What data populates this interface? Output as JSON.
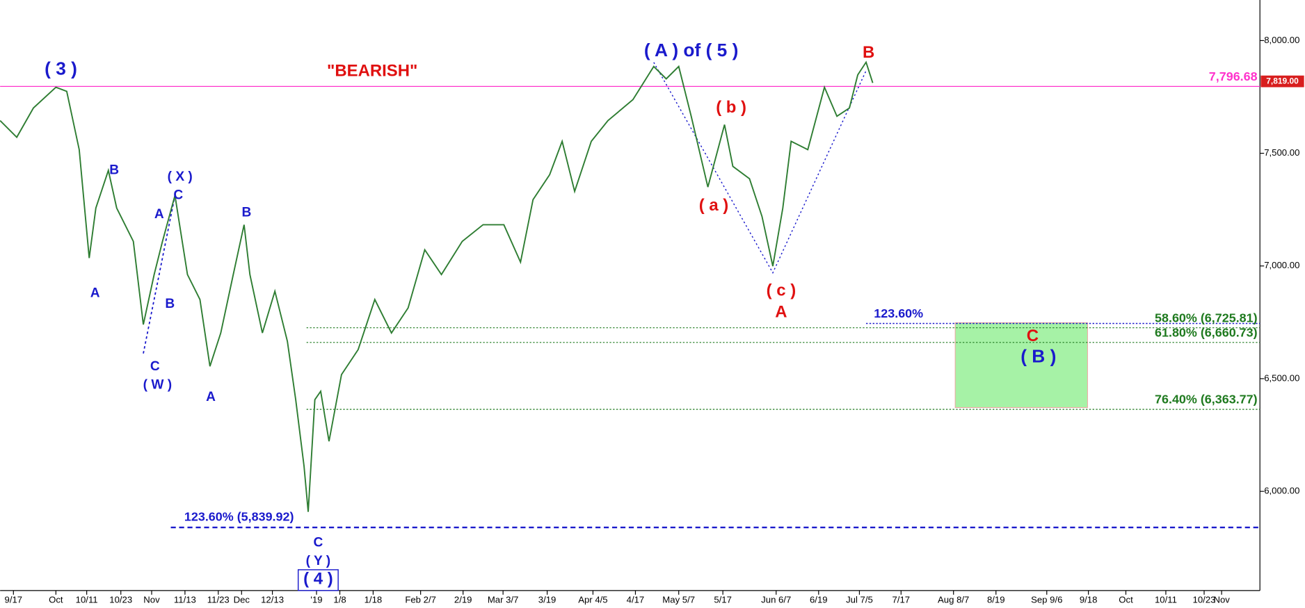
{
  "chart_data": {
    "type": "line",
    "color": "#2e7d32",
    "x": [
      0,
      5,
      10,
      16.75,
      20,
      23.75,
      26.75,
      28.75,
      32.5,
      35,
      40,
      43,
      46.25,
      48.75,
      52.5,
      56.25,
      60,
      63,
      66.25,
      70,
      73.25,
      75,
      78.75,
      82.5,
      86.25,
      88.75,
      91.25,
      92.5,
      94.5,
      96.25,
      98.75,
      102.5,
      107.5,
      112.5,
      117.5,
      122.5,
      127.5,
      132.5,
      138.75,
      145,
      151.25,
      156.25,
      160,
      165,
      168.75,
      172.5,
      177.5,
      182.5,
      190,
      196.25,
      200,
      203.75,
      207.5,
      212.5,
      217.5,
      220,
      225,
      228.75,
      232,
      235,
      237.5,
      242.5,
      247.5,
      251.25,
      255,
      257.5,
      260,
      262
    ],
    "values": [
      7645,
      7571,
      7701,
      7793,
      7775,
      7516,
      7035,
      7257,
      7424,
      7257,
      7109,
      6740,
      6962,
      7109,
      7313,
      6962,
      6851,
      6555,
      6703,
      6962,
      7183,
      6962,
      6703,
      6888,
      6666,
      6407,
      6112,
      5909,
      6407,
      6444,
      6222,
      6518,
      6629,
      6851,
      6703,
      6814,
      7072,
      6962,
      7109,
      7183,
      7183,
      7017,
      7294,
      7405,
      7553,
      7331,
      7553,
      7645,
      7738,
      7885,
      7830,
      7885,
      7664,
      7350,
      7627,
      7442,
      7387,
      7220,
      6999,
      7257,
      7553,
      7516,
      7793,
      7664,
      7701,
      7848,
      7904,
      7812
    ],
    "xlim": [
      0,
      378.25
    ],
    "ylim": [
      5560,
      8180
    ],
    "yticks": [
      {
        "value": 6000,
        "label": "6,000.00"
      },
      {
        "value": 6500,
        "label": "6,500.00"
      },
      {
        "value": 7000,
        "label": "7,000.00"
      },
      {
        "value": 7500,
        "label": "7,500.00"
      },
      {
        "value": 8000,
        "label": "8,000.00"
      }
    ],
    "xticks": [
      {
        "value": 4,
        "label": "9/17"
      },
      {
        "value": 16.75,
        "label": "Oct"
      },
      {
        "value": 26,
        "label": "10/11"
      },
      {
        "value": 36.25,
        "label": "10/23"
      },
      {
        "value": 45.5,
        "label": "Nov"
      },
      {
        "value": 55.5,
        "label": "11/13"
      },
      {
        "value": 65.5,
        "label": "11/23"
      },
      {
        "value": 72.5,
        "label": "Dec"
      },
      {
        "value": 81.75,
        "label": "12/13"
      },
      {
        "value": 95,
        "label": "'19"
      },
      {
        "value": 102,
        "label": "1/8"
      },
      {
        "value": 112,
        "label": "1/18"
      },
      {
        "value": 126.25,
        "label": "Feb 2/7"
      },
      {
        "value": 139,
        "label": "2/19"
      },
      {
        "value": 151,
        "label": "Mar 3/7"
      },
      {
        "value": 164.25,
        "label": "3/19"
      },
      {
        "value": 178,
        "label": "Apr 4/5"
      },
      {
        "value": 190.75,
        "label": "4/17"
      },
      {
        "value": 203.75,
        "label": "May 5/7"
      },
      {
        "value": 217,
        "label": "5/17"
      },
      {
        "value": 233,
        "label": "Jun 6/7"
      },
      {
        "value": 245.75,
        "label": "6/19"
      },
      {
        "value": 258,
        "label": "Jul 7/5"
      },
      {
        "value": 270.5,
        "label": "7/17"
      },
      {
        "value": 286.25,
        "label": "Aug 8/7"
      },
      {
        "value": 299,
        "label": "8/19"
      },
      {
        "value": 314.25,
        "label": "Sep 9/6"
      },
      {
        "value": 326.75,
        "label": "9/18"
      },
      {
        "value": 338,
        "label": "Oct"
      },
      {
        "value": 350,
        "label": "10/11"
      },
      {
        "value": 361.5,
        "label": "10/23"
      },
      {
        "value": 366.75,
        "label": "Nov"
      }
    ],
    "levels": [
      {
        "value": 7796.68,
        "label": "7,796.68",
        "color": "#ff33cc"
      },
      {
        "value": 5839.92,
        "label": "123.60% (5,839.92)",
        "color": "#1a1acc"
      },
      {
        "value": 6745,
        "label": "123.60%",
        "color": "#1a1acc"
      },
      {
        "value": 6725.81,
        "label": "58.60% (6,725.81)",
        "color": "#1f7a1f"
      },
      {
        "value": 6660.73,
        "label": "61.80% (6,660.73)",
        "color": "#1f7a1f"
      },
      {
        "value": 6363.77,
        "label": "76.40% (6,363.77)",
        "color": "#1f7a1f"
      }
    ],
    "last_price": {
      "value": 7819,
      "label": "7,819.00"
    },
    "annotations": [
      "( 3 )",
      "\"BEARISH\"",
      "( A ) of ( 5 )",
      "B",
      "( b )",
      "( a )",
      "( c )",
      "A",
      "C",
      "( B )",
      "B",
      "( X )",
      "C",
      "A",
      "B",
      "A",
      "B",
      "C",
      "( W )",
      "A",
      "C",
      "( Y )",
      "( 4 )"
    ]
  }
}
